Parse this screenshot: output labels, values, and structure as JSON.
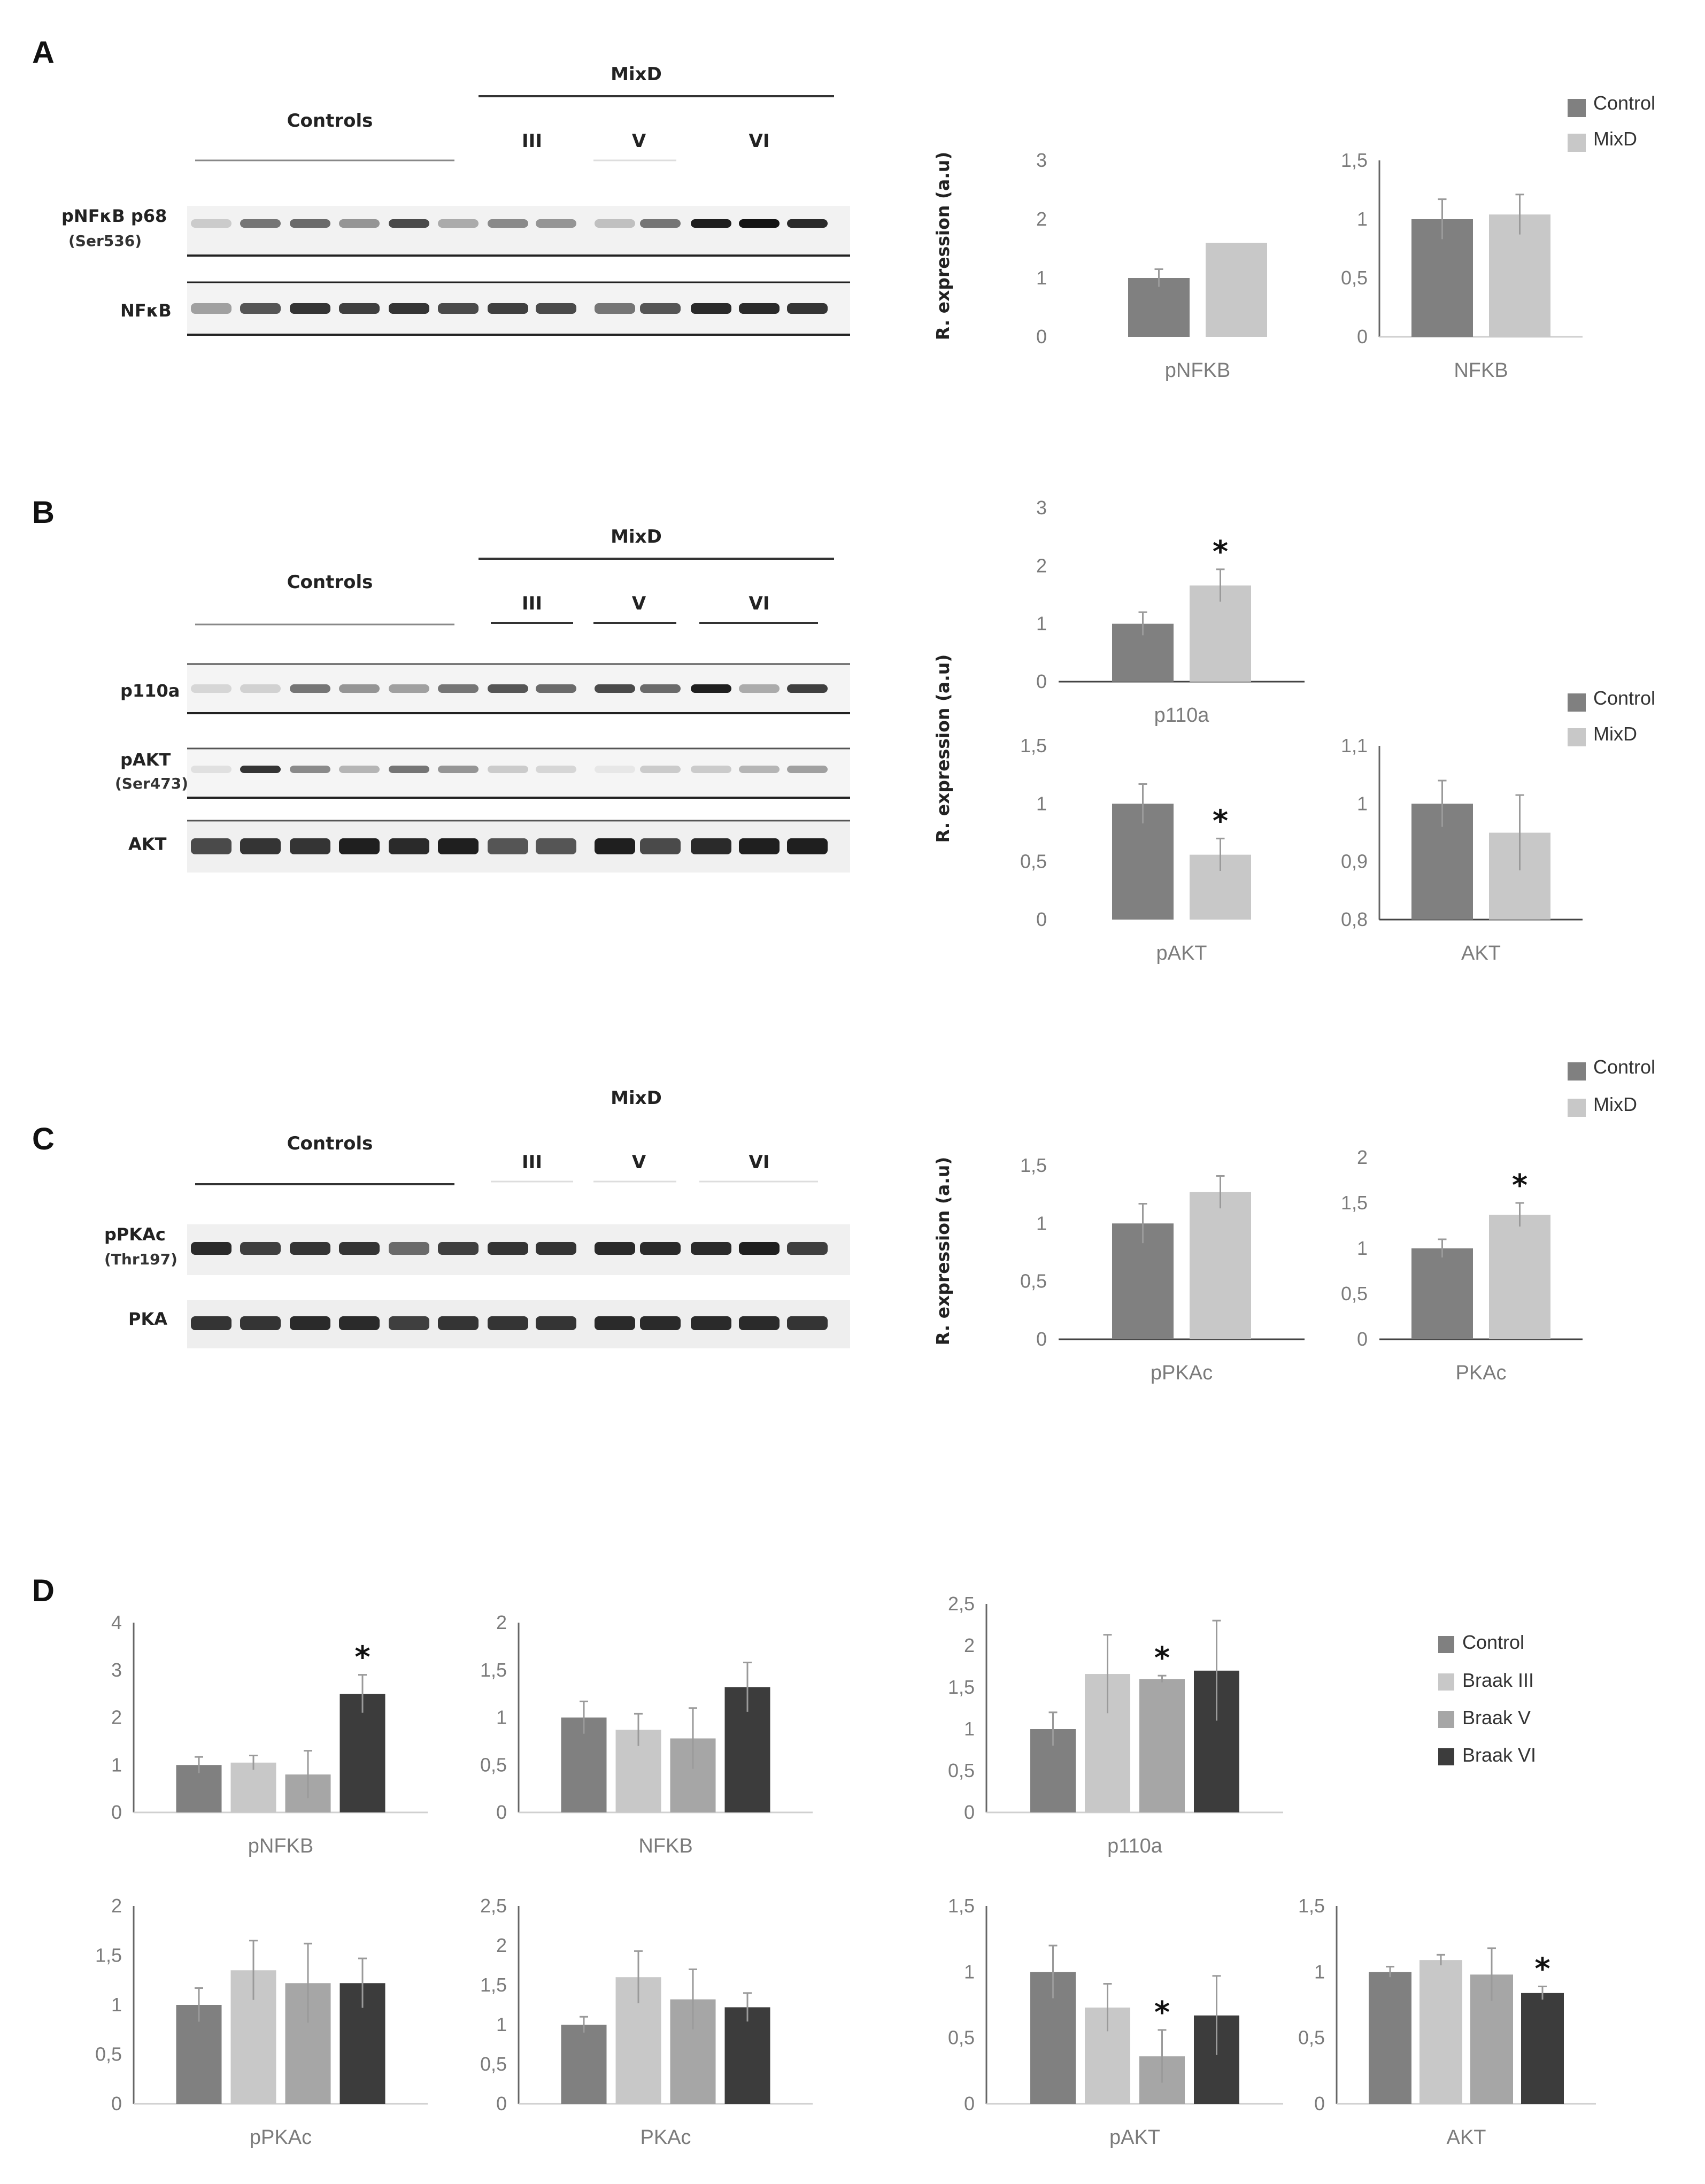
{
  "panels": {
    "A": {
      "letter": "A",
      "group_header": "MixD",
      "controls_label": "Controls",
      "stage_labels": [
        "III",
        "V",
        "VI"
      ],
      "blots": [
        {
          "label": "pNFκB p68",
          "sub": "(Ser536)"
        },
        {
          "label": "NFκB",
          "sub": ""
        }
      ]
    },
    "B": {
      "letter": "B",
      "group_header": "MixD",
      "controls_label": "Controls",
      "stage_labels": [
        "III",
        "V",
        "VI"
      ],
      "blots": [
        {
          "label": "p110a",
          "sub": ""
        },
        {
          "label": "pAKT",
          "sub": "(Ser473)"
        },
        {
          "label": "AKT",
          "sub": ""
        }
      ]
    },
    "C": {
      "letter": "C",
      "group_header": "MixD",
      "controls_label": "Controls",
      "stage_labels": [
        "III",
        "V",
        "VI"
      ],
      "blots": [
        {
          "label": "pPKAc",
          "sub": "(Thr197)"
        },
        {
          "label": "PKA",
          "sub": ""
        }
      ]
    },
    "D": {
      "letter": "D"
    }
  },
  "y_axis_label": "R. expression (a.u)",
  "colors": {
    "control": "#808080",
    "mixd": "#c8c8c8",
    "braak_iii": "#c8c8c8",
    "braak_v": "#a6a6a6",
    "braak_vi": "#3c3c3c",
    "axis": "#bfbfbf",
    "errorbar": "#9a9a9a"
  },
  "legends": {
    "two_group": [
      "Control",
      "MixD"
    ],
    "four_group": [
      "Control",
      "Braak III",
      "Braak V",
      "Braak VI"
    ]
  },
  "chart_data": [
    {
      "id": "A-pNFKB",
      "type": "bar",
      "xlabel": "pNFKB",
      "ylim": [
        0,
        3
      ],
      "yticks": [
        "0",
        "1",
        "2",
        "3"
      ],
      "series": [
        {
          "name": "Control",
          "values": [
            1.0
          ],
          "err": [
            0.15
          ]
        },
        {
          "name": "MixD",
          "values": [
            1.6
          ],
          "err": [
            0.0
          ]
        }
      ],
      "stars": []
    },
    {
      "id": "A-NFKB",
      "type": "bar",
      "xlabel": "NFKB",
      "ylim": [
        0,
        1.5
      ],
      "yticks": [
        "0",
        "0,5",
        "1",
        "1,5"
      ],
      "series": [
        {
          "name": "Control",
          "values": [
            1.0
          ],
          "err": [
            0.17
          ]
        },
        {
          "name": "MixD",
          "values": [
            1.04
          ],
          "err": [
            0.17
          ]
        }
      ],
      "stars": []
    },
    {
      "id": "B-p110a",
      "type": "bar",
      "xlabel": "p110a",
      "ylim": [
        0,
        3
      ],
      "yticks": [
        "0",
        "1",
        "2",
        "3"
      ],
      "series": [
        {
          "name": "Control",
          "values": [
            1.0
          ],
          "err": [
            0.2
          ]
        },
        {
          "name": "MixD",
          "values": [
            1.66
          ],
          "err": [
            0.28
          ]
        }
      ],
      "stars": [
        1
      ]
    },
    {
      "id": "B-pAKT",
      "type": "bar",
      "xlabel": "pAKT",
      "ylim": [
        0,
        1.5
      ],
      "yticks": [
        "0",
        "0,5",
        "1",
        "1,5"
      ],
      "series": [
        {
          "name": "Control",
          "values": [
            1.0
          ],
          "err": [
            0.17
          ]
        },
        {
          "name": "MixD",
          "values": [
            0.56
          ],
          "err": [
            0.14
          ]
        }
      ],
      "stars": [
        1
      ]
    },
    {
      "id": "B-AKT",
      "type": "bar",
      "xlabel": "AKT",
      "ylim": [
        0.8,
        1.1
      ],
      "yticks": [
        "0,8",
        "0,9",
        "1",
        "1,1"
      ],
      "series": [
        {
          "name": "Control",
          "values": [
            1.0
          ],
          "err": [
            0.04
          ]
        },
        {
          "name": "MixD",
          "values": [
            0.95
          ],
          "err": [
            0.065
          ]
        }
      ],
      "stars": []
    },
    {
      "id": "C-pPKAc",
      "type": "bar",
      "xlabel": "pPKAc",
      "ylim": [
        0,
        1.5
      ],
      "yticks": [
        "0",
        "0,5",
        "1",
        "1,5"
      ],
      "series": [
        {
          "name": "Control",
          "values": [
            1.0
          ],
          "err": [
            0.17
          ]
        },
        {
          "name": "MixD",
          "values": [
            1.27
          ],
          "err": [
            0.14
          ]
        }
      ],
      "stars": []
    },
    {
      "id": "C-PKAc",
      "type": "bar",
      "xlabel": "PKAc",
      "ylim": [
        0,
        2
      ],
      "yticks": [
        "0",
        "0,5",
        "1",
        "1,5",
        "2"
      ],
      "series": [
        {
          "name": "Control",
          "values": [
            1.0
          ],
          "err": [
            0.1
          ]
        },
        {
          "name": "MixD",
          "values": [
            1.37
          ],
          "err": [
            0.13
          ]
        }
      ],
      "stars": [
        1
      ]
    },
    {
      "id": "D-pNFKB",
      "type": "bar",
      "xlabel": "pNFKB",
      "ylim": [
        0,
        4
      ],
      "yticks": [
        "0",
        "1",
        "2",
        "3",
        "4"
      ],
      "series": [
        {
          "name": "Control",
          "values": [
            1.0
          ],
          "err": [
            0.17
          ]
        },
        {
          "name": "Braak III",
          "values": [
            1.05
          ],
          "err": [
            0.15
          ]
        },
        {
          "name": "Braak V",
          "values": [
            0.8
          ],
          "err": [
            0.5
          ]
        },
        {
          "name": "Braak VI",
          "values": [
            2.5
          ],
          "err": [
            0.4
          ]
        }
      ],
      "stars": [
        3
      ]
    },
    {
      "id": "D-NFKB",
      "type": "bar",
      "xlabel": "NFKB",
      "ylim": [
        0,
        2
      ],
      "yticks": [
        "0",
        "0,5",
        "1",
        "1,5",
        "2"
      ],
      "series": [
        {
          "name": "Control",
          "values": [
            1.0
          ],
          "err": [
            0.17
          ]
        },
        {
          "name": "Braak III",
          "values": [
            0.87
          ],
          "err": [
            0.17
          ]
        },
        {
          "name": "Braak V",
          "values": [
            0.78
          ],
          "err": [
            0.32
          ]
        },
        {
          "name": "Braak VI",
          "values": [
            1.32
          ],
          "err": [
            0.26
          ]
        }
      ],
      "stars": []
    },
    {
      "id": "D-p110a",
      "type": "bar",
      "xlabel": "p110a",
      "ylim": [
        0,
        2.5
      ],
      "yticks": [
        "0",
        "0,5",
        "1",
        "1,5",
        "2",
        "2,5"
      ],
      "series": [
        {
          "name": "Control",
          "values": [
            1.0
          ],
          "err": [
            0.2
          ]
        },
        {
          "name": "Braak III",
          "values": [
            1.66
          ],
          "err": [
            0.47
          ]
        },
        {
          "name": "Braak V",
          "values": [
            1.6
          ],
          "err": [
            0.04
          ]
        },
        {
          "name": "Braak VI",
          "values": [
            1.7
          ],
          "err": [
            0.6
          ]
        }
      ],
      "stars": [
        2
      ]
    },
    {
      "id": "D-pPKAc",
      "type": "bar",
      "xlabel": "pPKAc",
      "ylim": [
        0,
        2
      ],
      "yticks": [
        "0",
        "0,5",
        "1",
        "1,5",
        "2"
      ],
      "series": [
        {
          "name": "Control",
          "values": [
            1.0
          ],
          "err": [
            0.17
          ]
        },
        {
          "name": "Braak III",
          "values": [
            1.35
          ],
          "err": [
            0.3
          ]
        },
        {
          "name": "Braak V",
          "values": [
            1.22
          ],
          "err": [
            0.4
          ]
        },
        {
          "name": "Braak VI",
          "values": [
            1.22
          ],
          "err": [
            0.25
          ]
        }
      ],
      "stars": []
    },
    {
      "id": "D-PKAc",
      "type": "bar",
      "xlabel": "PKAc",
      "ylim": [
        0,
        2.5
      ],
      "yticks": [
        "0",
        "0,5",
        "1",
        "1,5",
        "2",
        "2,5"
      ],
      "series": [
        {
          "name": "Control",
          "values": [
            1.0
          ],
          "err": [
            0.1
          ]
        },
        {
          "name": "Braak III",
          "values": [
            1.6
          ],
          "err": [
            0.33
          ]
        },
        {
          "name": "Braak V",
          "values": [
            1.32
          ],
          "err": [
            0.38
          ]
        },
        {
          "name": "Braak VI",
          "values": [
            1.22
          ],
          "err": [
            0.18
          ]
        }
      ],
      "stars": []
    },
    {
      "id": "D-pAKT",
      "type": "bar",
      "xlabel": "pAKT",
      "ylim": [
        0,
        1.5
      ],
      "yticks": [
        "0",
        "0,5",
        "1",
        "1,5"
      ],
      "series": [
        {
          "name": "Control",
          "values": [
            1.0
          ],
          "err": [
            0.2
          ]
        },
        {
          "name": "Braak III",
          "values": [
            0.73
          ],
          "err": [
            0.18
          ]
        },
        {
          "name": "Braak V",
          "values": [
            0.36
          ],
          "err": [
            0.2
          ]
        },
        {
          "name": "Braak VI",
          "values": [
            0.67
          ],
          "err": [
            0.3
          ]
        }
      ],
      "stars": [
        2
      ]
    },
    {
      "id": "D-AKT",
      "type": "bar",
      "xlabel": "AKT",
      "ylim": [
        0,
        1.5
      ],
      "yticks": [
        "0",
        "0,5",
        "1",
        "1,5"
      ],
      "series": [
        {
          "name": "Control",
          "values": [
            1.0
          ],
          "err": [
            0.04
          ]
        },
        {
          "name": "Braak III",
          "values": [
            1.09
          ],
          "err": [
            0.04
          ]
        },
        {
          "name": "Braak V",
          "values": [
            0.98
          ],
          "err": [
            0.2
          ]
        },
        {
          "name": "Braak VI",
          "values": [
            0.84
          ],
          "err": [
            0.05
          ]
        }
      ],
      "stars": [
        3
      ]
    }
  ]
}
